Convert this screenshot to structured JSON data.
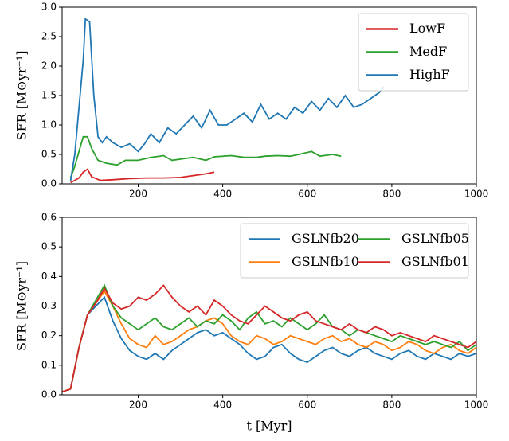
{
  "chart_data": [
    {
      "type": "line",
      "ylabel": "SFR [M⊙yr⁻¹]",
      "xlim": [
        20,
        1000
      ],
      "xticks": [
        200,
        400,
        600,
        800,
        1000
      ],
      "ylim": [
        0,
        3
      ],
      "yticks": [
        {
          "value": 0,
          "label": "0.0"
        },
        {
          "value": 0.5,
          "label": "0.5"
        },
        {
          "value": 1,
          "label": "1.0"
        },
        {
          "value": 1.5,
          "label": "1.5"
        },
        {
          "value": 2,
          "label": "2.0"
        },
        {
          "value": 2.5,
          "label": "2.5"
        },
        {
          "value": 3,
          "label": "3.0"
        }
      ],
      "legend": "upper right",
      "legend_columns": 1,
      "series": [
        {
          "name": "LowF",
          "color": "#d62728",
          "x": [
            40,
            60,
            70,
            80,
            90,
            110,
            140,
            180,
            220,
            260,
            300,
            330,
            360,
            380
          ],
          "values": [
            0.02,
            0.1,
            0.2,
            0.25,
            0.12,
            0.06,
            0.07,
            0.09,
            0.1,
            0.1,
            0.11,
            0.14,
            0.17,
            0.2
          ]
        },
        {
          "name": "MedF",
          "color": "#2ca02c",
          "x": [
            40,
            50,
            60,
            70,
            80,
            90,
            105,
            125,
            150,
            170,
            200,
            230,
            260,
            280,
            300,
            330,
            360,
            380,
            420,
            450,
            480,
            500,
            530,
            560,
            580,
            610,
            630,
            660,
            680
          ],
          "values": [
            0.1,
            0.3,
            0.55,
            0.8,
            0.8,
            0.6,
            0.4,
            0.35,
            0.32,
            0.4,
            0.4,
            0.45,
            0.48,
            0.4,
            0.42,
            0.45,
            0.4,
            0.46,
            0.48,
            0.45,
            0.45,
            0.47,
            0.48,
            0.47,
            0.5,
            0.55,
            0.47,
            0.5,
            0.47
          ]
        },
        {
          "name": "HighF",
          "color": "#1f77b4",
          "x": [
            40,
            50,
            60,
            70,
            75,
            85,
            95,
            105,
            115,
            125,
            140,
            160,
            180,
            200,
            215,
            230,
            250,
            270,
            290,
            310,
            330,
            350,
            370,
            390,
            410,
            430,
            450,
            470,
            490,
            510,
            530,
            550,
            570,
            590,
            610,
            630,
            650,
            670,
            690,
            710,
            730,
            750,
            770,
            780
          ],
          "values": [
            0.05,
            0.5,
            1.3,
            2.1,
            2.8,
            2.75,
            1.5,
            0.8,
            0.7,
            0.8,
            0.7,
            0.62,
            0.68,
            0.55,
            0.68,
            0.85,
            0.7,
            0.95,
            0.85,
            1.0,
            1.15,
            0.95,
            1.25,
            1.0,
            1.0,
            1.1,
            1.2,
            1.05,
            1.35,
            1.1,
            1.2,
            1.1,
            1.3,
            1.2,
            1.4,
            1.25,
            1.45,
            1.3,
            1.5,
            1.3,
            1.35,
            1.45,
            1.55,
            1.65
          ]
        }
      ]
    },
    {
      "type": "line",
      "ylabel": "SFR [M⊙yr⁻¹]",
      "xlabel": "t [Myr]",
      "xlim": [
        20,
        1000
      ],
      "xticks": [
        200,
        400,
        600,
        800,
        1000
      ],
      "ylim": [
        0,
        0.6
      ],
      "yticks": [
        {
          "value": 0,
          "label": "0.0"
        },
        {
          "value": 0.1,
          "label": "0.1"
        },
        {
          "value": 0.2,
          "label": "0.2"
        },
        {
          "value": 0.3,
          "label": "0.3"
        },
        {
          "value": 0.4,
          "label": "0.4"
        },
        {
          "value": 0.5,
          "label": "0.5"
        },
        {
          "value": 0.6,
          "label": "0.6"
        }
      ],
      "legend": "upper right",
      "legend_columns": 2,
      "x": [
        20,
        40,
        60,
        80,
        100,
        120,
        140,
        160,
        180,
        200,
        220,
        240,
        260,
        280,
        300,
        320,
        340,
        360,
        380,
        400,
        420,
        440,
        460,
        480,
        500,
        520,
        540,
        560,
        580,
        600,
        620,
        640,
        660,
        680,
        700,
        720,
        740,
        760,
        780,
        800,
        820,
        840,
        860,
        880,
        900,
        920,
        940,
        960,
        980,
        1000
      ],
      "series": [
        {
          "name": "GSLNfb20",
          "color": "#1f77b4",
          "values": [
            0.01,
            0.02,
            0.16,
            0.27,
            0.3,
            0.33,
            0.25,
            0.19,
            0.15,
            0.13,
            0.12,
            0.14,
            0.12,
            0.15,
            0.17,
            0.19,
            0.21,
            0.22,
            0.2,
            0.21,
            0.19,
            0.17,
            0.14,
            0.12,
            0.13,
            0.16,
            0.17,
            0.14,
            0.12,
            0.11,
            0.13,
            0.15,
            0.16,
            0.14,
            0.13,
            0.15,
            0.16,
            0.14,
            0.13,
            0.12,
            0.14,
            0.15,
            0.13,
            0.12,
            0.14,
            0.13,
            0.12,
            0.14,
            0.13,
            0.14
          ]
        },
        {
          "name": "GSLNfb10",
          "color": "#ff7f0e",
          "values": [
            0.01,
            0.02,
            0.16,
            0.27,
            0.31,
            0.35,
            0.3,
            0.24,
            0.19,
            0.17,
            0.16,
            0.2,
            0.17,
            0.18,
            0.2,
            0.22,
            0.23,
            0.25,
            0.26,
            0.24,
            0.2,
            0.18,
            0.17,
            0.2,
            0.19,
            0.17,
            0.18,
            0.2,
            0.19,
            0.18,
            0.17,
            0.19,
            0.2,
            0.18,
            0.19,
            0.17,
            0.16,
            0.18,
            0.17,
            0.15,
            0.16,
            0.18,
            0.17,
            0.15,
            0.14,
            0.16,
            0.17,
            0.15,
            0.14,
            0.16
          ]
        },
        {
          "name": "GSLNfb05",
          "color": "#2ca02c",
          "values": [
            0.01,
            0.02,
            0.16,
            0.27,
            0.32,
            0.37,
            0.3,
            0.26,
            0.24,
            0.22,
            0.24,
            0.26,
            0.23,
            0.22,
            0.24,
            0.26,
            0.23,
            0.25,
            0.24,
            0.27,
            0.25,
            0.22,
            0.26,
            0.28,
            0.24,
            0.25,
            0.23,
            0.26,
            0.24,
            0.22,
            0.24,
            0.27,
            0.23,
            0.22,
            0.2,
            0.22,
            0.21,
            0.2,
            0.19,
            0.18,
            0.2,
            0.19,
            0.18,
            0.17,
            0.18,
            0.17,
            0.16,
            0.18,
            0.15,
            0.17
          ]
        },
        {
          "name": "GSLNfb01",
          "color": "#d62728",
          "values": [
            0.01,
            0.02,
            0.16,
            0.27,
            0.31,
            0.36,
            0.31,
            0.29,
            0.3,
            0.33,
            0.32,
            0.34,
            0.37,
            0.33,
            0.3,
            0.28,
            0.3,
            0.27,
            0.32,
            0.3,
            0.27,
            0.25,
            0.24,
            0.27,
            0.3,
            0.28,
            0.26,
            0.25,
            0.27,
            0.28,
            0.25,
            0.24,
            0.23,
            0.22,
            0.24,
            0.22,
            0.21,
            0.23,
            0.22,
            0.2,
            0.21,
            0.2,
            0.19,
            0.18,
            0.2,
            0.19,
            0.18,
            0.17,
            0.16,
            0.18
          ]
        }
      ]
    }
  ]
}
